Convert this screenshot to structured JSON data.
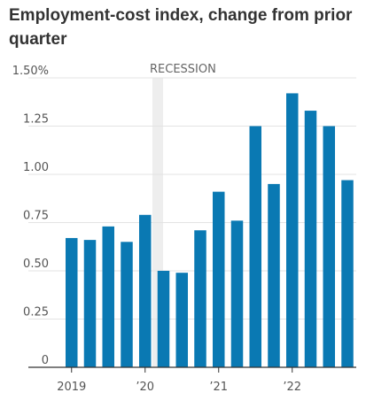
{
  "chart_data": {
    "type": "bar",
    "title": "Employment-cost index, change from prior quarter",
    "xlabel": "",
    "ylabel": "",
    "ylim": [
      0,
      1.5
    ],
    "y_ticks": [
      {
        "value": 1.5,
        "label": "1.50%"
      },
      {
        "value": 1.25,
        "label": "1.25"
      },
      {
        "value": 1.0,
        "label": "1.00"
      },
      {
        "value": 0.75,
        "label": "0.75"
      },
      {
        "value": 0.5,
        "label": "0.50"
      },
      {
        "value": 0.25,
        "label": "0.25"
      },
      {
        "value": 0,
        "label": "0"
      }
    ],
    "x_tick_labels": [
      {
        "label": "2019",
        "at_index": 0
      },
      {
        "label": "’20",
        "at_index": 4
      },
      {
        "label": "’21",
        "at_index": 8
      },
      {
        "label": "’22",
        "at_index": 12
      }
    ],
    "categories": [
      "2019 Q1",
      "2019 Q2",
      "2019 Q3",
      "2019 Q4",
      "2020 Q1",
      "2020 Q2",
      "2020 Q3",
      "2020 Q4",
      "2021 Q1",
      "2021 Q2",
      "2021 Q3",
      "2021 Q4",
      "2022 Q1",
      "2022 Q2",
      "2022 Q3",
      "2022 Q4"
    ],
    "values": [
      0.67,
      0.66,
      0.73,
      0.65,
      0.79,
      0.5,
      0.49,
      0.71,
      0.91,
      0.76,
      1.25,
      0.95,
      1.42,
      1.33,
      1.25,
      0.97
    ],
    "recession": {
      "label": "RECESSION",
      "start_index": 4,
      "end_index": 5
    },
    "grid": true,
    "colors": {
      "bar": "#0a79b3",
      "recession": "#eeeeee",
      "grid": "#e3e3e3",
      "axis": "#333333"
    }
  }
}
